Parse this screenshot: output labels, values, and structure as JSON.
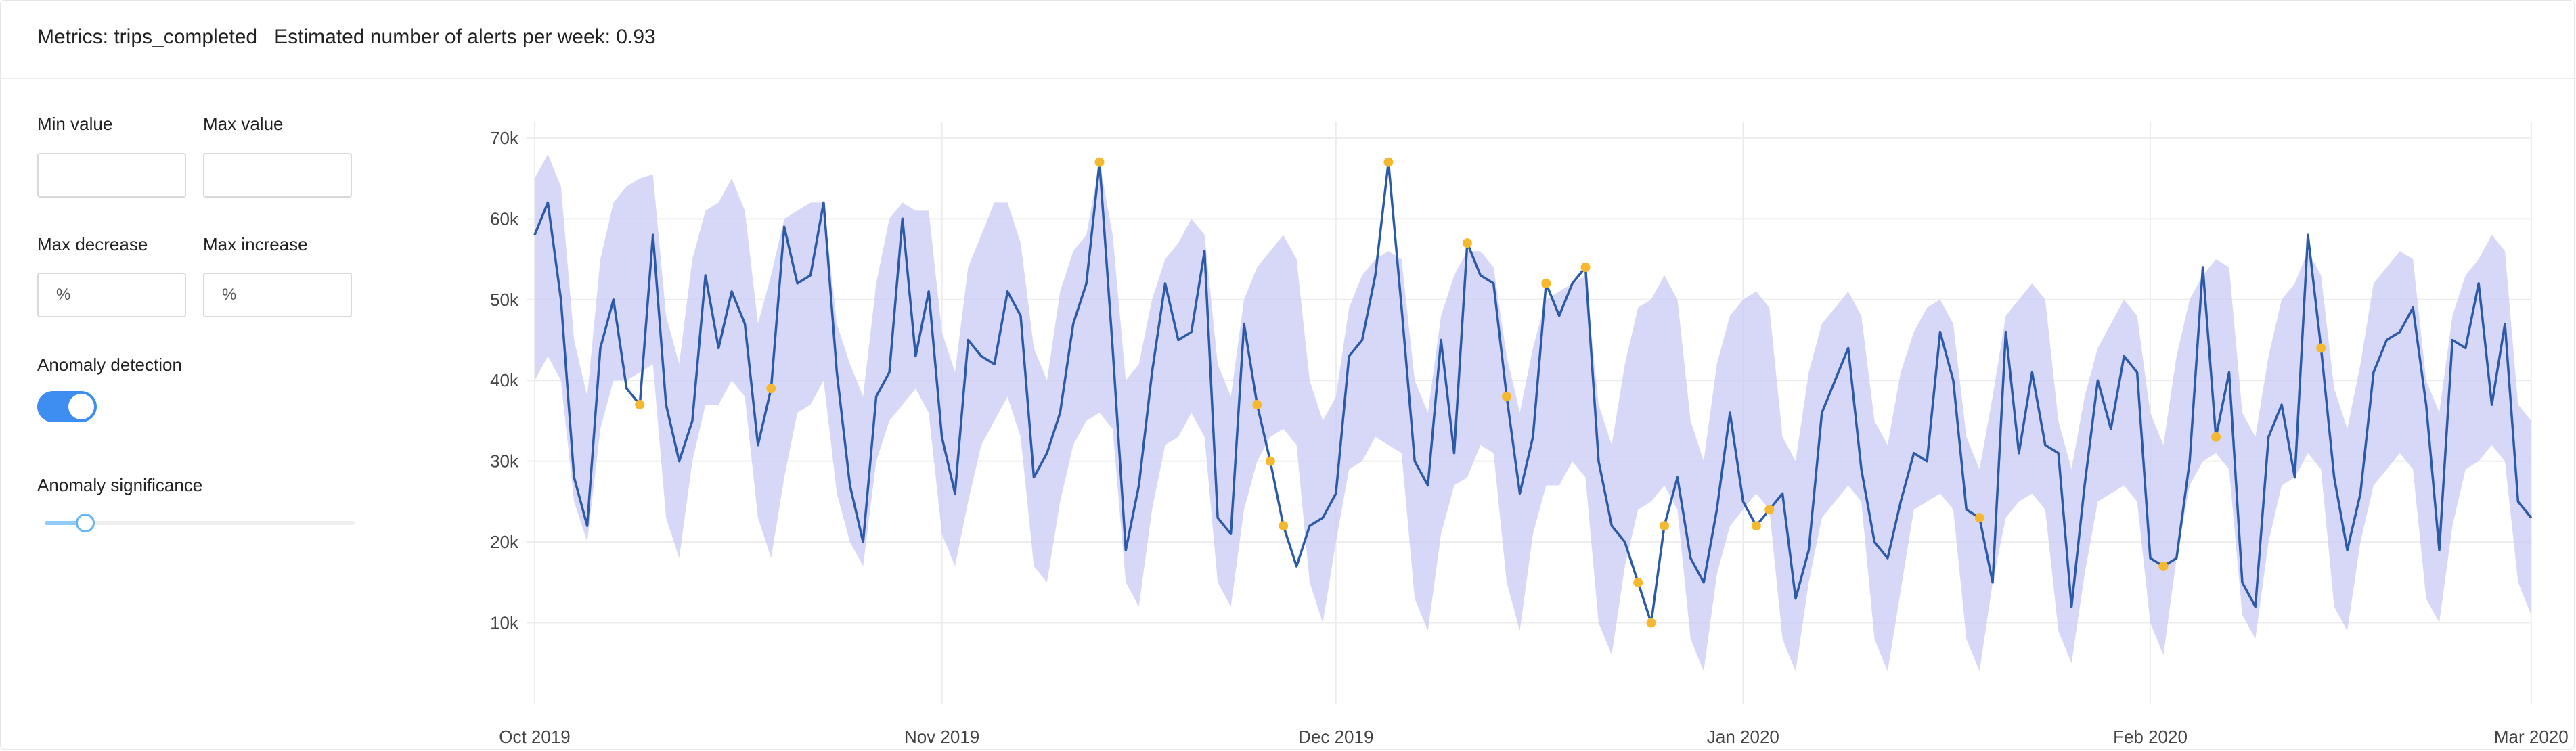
{
  "header": {
    "metric_label": "Metrics: trips_completed",
    "alerts_label": "Estimated number of alerts per week: 0.93"
  },
  "controls": {
    "min_value_label": "Min value",
    "max_value_label": "Max value",
    "min_value": "",
    "max_value": "",
    "max_decrease_label": "Max decrease",
    "max_increase_label": "Max increase",
    "max_decrease_placeholder": "%",
    "max_increase_placeholder": "%",
    "anomaly_detection_label": "Anomaly detection",
    "anomaly_detection_enabled": true,
    "anomaly_significance_label": "Anomaly significance",
    "anomaly_significance_level": 0.1
  },
  "colors": {
    "line": "#2b5aa8",
    "band": "#c9c9f5",
    "anomaly": "#f5b82e",
    "toggle_on": "#3d8ef0",
    "grid": "#ececec"
  },
  "chart_data": {
    "type": "line",
    "start_date": "2019-10-01",
    "ylim": [
      0,
      72000
    ],
    "yticks": [
      10000,
      20000,
      30000,
      40000,
      50000,
      60000,
      70000
    ],
    "ytick_labels": [
      "10k",
      "20k",
      "30k",
      "40k",
      "50k",
      "60k",
      "70k"
    ],
    "xtick_labels": [
      {
        "date": "2019-10-01",
        "label": "Oct 2019"
      },
      {
        "date": "2019-11-01",
        "label": "Nov 2019"
      },
      {
        "date": "2019-12-01",
        "label": "Dec 2019"
      },
      {
        "date": "2020-01-01",
        "label": "Jan 2020"
      },
      {
        "date": "2020-02-01",
        "label": "Feb 2020"
      },
      {
        "date": "2020-03-01",
        "label": "Mar 2020"
      }
    ],
    "grid": true,
    "series": [
      {
        "values": [
          58000,
          62000,
          50000,
          28000,
          22000,
          44000,
          50000,
          39000,
          37000,
          58000,
          37000,
          30000,
          35000,
          53000,
          44000,
          51000,
          47000,
          32000,
          39000,
          59000,
          52000,
          53000,
          62000,
          41000,
          27000,
          20000,
          38000,
          41000,
          60000,
          43000,
          51000,
          33000,
          26000,
          45000,
          43000,
          42000,
          51000,
          48000,
          28000,
          31000,
          36000,
          47000,
          52000,
          67000,
          44000,
          19000,
          27000,
          41000,
          52000,
          45000,
          46000,
          56000,
          23000,
          21000,
          47000,
          37000,
          30000,
          22000,
          17000,
          22000,
          23000,
          26000,
          43000,
          45000,
          53000,
          67000,
          49000,
          30000,
          27000,
          45000,
          31000,
          57000,
          53000,
          52000,
          38000,
          26000,
          33000,
          52000,
          48000,
          52000,
          54000,
          30000,
          22000,
          20000,
          15000,
          10000,
          22000,
          28000,
          18000,
          15000,
          24000,
          36000,
          25000,
          22000,
          24000,
          26000,
          13000,
          19000,
          36000,
          40000,
          44000,
          29000,
          20000,
          18000,
          25000,
          31000,
          30000,
          46000,
          40000,
          24000,
          23000,
          15000,
          46000,
          31000,
          41000,
          32000,
          31000,
          12000,
          27000,
          40000,
          34000,
          43000,
          41000,
          18000,
          17000,
          18000,
          30000,
          54000,
          33000,
          41000,
          15000,
          12000,
          33000,
          37000,
          28000,
          58000,
          44000,
          28000,
          19000,
          26000,
          41000,
          45000,
          46000,
          49000,
          37000,
          19000,
          45000,
          44000,
          52000,
          37000,
          47000,
          25000,
          23000
        ]
      }
    ],
    "band": {
      "upper": [
        65000,
        68000,
        64000,
        45000,
        38000,
        55000,
        62000,
        64000,
        65000,
        65500,
        48000,
        42000,
        55000,
        61000,
        62000,
        65000,
        61000,
        47000,
        53000,
        60000,
        61000,
        62000,
        62000,
        47000,
        42000,
        38000,
        52000,
        60000,
        62000,
        61000,
        61000,
        46000,
        41000,
        54000,
        58000,
        62000,
        62000,
        57000,
        44000,
        40000,
        51000,
        56000,
        58000,
        67000,
        58000,
        40000,
        42000,
        50000,
        55000,
        57000,
        60000,
        58000,
        42000,
        38000,
        50000,
        54000,
        56000,
        58000,
        55000,
        40000,
        35000,
        38000,
        49000,
        53000,
        55000,
        56000,
        55000,
        40000,
        36000,
        48000,
        53000,
        56000,
        56000,
        54000,
        43000,
        36000,
        44000,
        50000,
        51000,
        52000,
        53000,
        37000,
        32000,
        42000,
        49000,
        50000,
        53000,
        50000,
        35000,
        30000,
        42000,
        48000,
        50000,
        51000,
        49000,
        33000,
        30000,
        41000,
        47000,
        49000,
        51000,
        48000,
        35000,
        32000,
        41000,
        46000,
        49000,
        50000,
        47000,
        33000,
        29000,
        38000,
        48000,
        50000,
        52000,
        50000,
        35000,
        29000,
        38000,
        44000,
        47000,
        50000,
        48000,
        36000,
        32000,
        43000,
        50000,
        53000,
        55000,
        54000,
        36000,
        33000,
        43000,
        50000,
        52000,
        56000,
        53000,
        39000,
        34000,
        42000,
        52000,
        54000,
        56000,
        55000,
        40000,
        36000,
        48000,
        53000,
        55000,
        58000,
        56000,
        37000,
        35000
      ],
      "lower": [
        40000,
        43000,
        40000,
        25000,
        20000,
        34000,
        40000,
        40000,
        41000,
        42000,
        23000,
        18000,
        30000,
        37000,
        37000,
        40000,
        38000,
        23000,
        18000,
        28000,
        36000,
        37000,
        40000,
        26000,
        20000,
        17000,
        30000,
        35000,
        37000,
        39000,
        36000,
        21000,
        17000,
        25000,
        32000,
        35000,
        38000,
        33000,
        17000,
        15000,
        25000,
        32000,
        35000,
        36000,
        34000,
        15000,
        12000,
        24000,
        32000,
        33000,
        36000,
        33000,
        15000,
        12000,
        24000,
        30000,
        33000,
        34000,
        32000,
        15000,
        10000,
        20000,
        29000,
        30000,
        33000,
        32000,
        31000,
        13000,
        9000,
        21000,
        27000,
        28000,
        32000,
        31000,
        15000,
        9000,
        21000,
        27000,
        27000,
        30000,
        28000,
        10000,
        6000,
        17000,
        24000,
        25000,
        27000,
        24000,
        8000,
        4000,
        16000,
        22000,
        24000,
        26000,
        24000,
        8000,
        4000,
        15000,
        23000,
        25000,
        27000,
        25000,
        8000,
        4000,
        14000,
        24000,
        25000,
        26000,
        24000,
        8000,
        4000,
        15000,
        23000,
        25000,
        26000,
        24000,
        9000,
        5000,
        16000,
        25000,
        26000,
        27000,
        25000,
        10000,
        6000,
        18000,
        27000,
        30000,
        31000,
        29000,
        11000,
        8000,
        20000,
        27000,
        28000,
        31000,
        29000,
        12000,
        9000,
        20000,
        27000,
        29000,
        31000,
        29000,
        13000,
        10000,
        22000,
        29000,
        30000,
        32000,
        30000,
        15000,
        11000
      ]
    },
    "anomalies": [
      8,
      18,
      43,
      55,
      56,
      57,
      65,
      71,
      74,
      77,
      80,
      84,
      85,
      86,
      93,
      94,
      110,
      124,
      128,
      136
    ]
  }
}
